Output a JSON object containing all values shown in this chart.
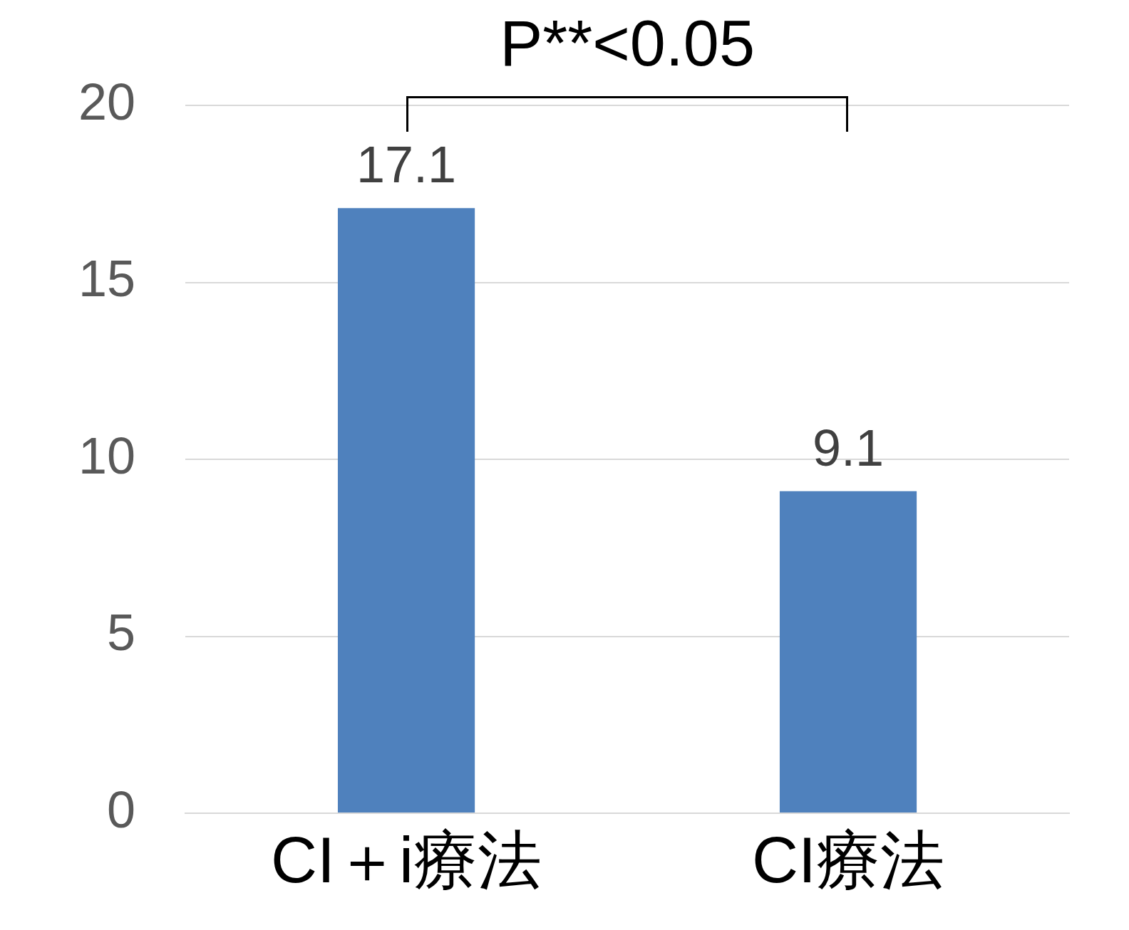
{
  "chart_data": {
    "type": "bar",
    "categories": [
      "CI＋i療法",
      "CI療法"
    ],
    "values": [
      17.1,
      9.1
    ],
    "color": "#4f81bd",
    "ylim": [
      0,
      20
    ],
    "yticks": [
      0,
      5,
      10,
      15,
      20
    ],
    "grid": "y",
    "data_labels": true,
    "legend": false,
    "annotations": [
      "P**<0.05"
    ]
  }
}
